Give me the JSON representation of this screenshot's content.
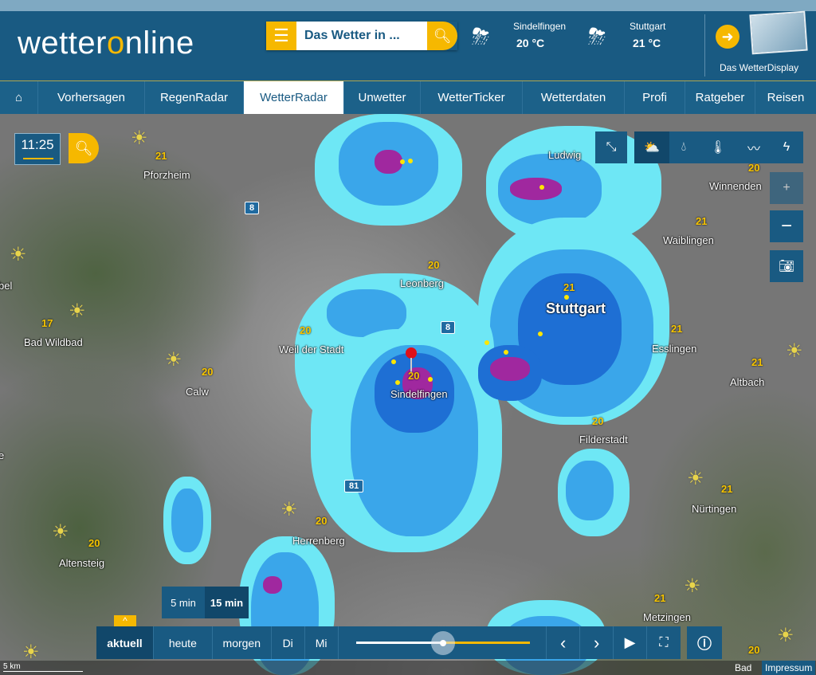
{
  "header": {
    "logo": "wetteronline",
    "search_placeholder": "Das Wetter in ...",
    "weather": [
      {
        "city": "Sindelfingen",
        "temp": "20 °C",
        "icon": "thunderstorm-icon"
      },
      {
        "city": "Stuttgart",
        "temp": "21 °C",
        "icon": "sun-thunderstorm-icon"
      }
    ],
    "wetterdisplay": "Das WetterDisplay"
  },
  "nav": {
    "items": [
      "Vorhersagen",
      "RegenRadar",
      "WetterRadar",
      "Unwetter",
      "WetterTicker",
      "Wetterdaten",
      "Profi",
      "Ratgeber",
      "Reisen"
    ],
    "active": "WetterRadar"
  },
  "map": {
    "time": "11:25",
    "cities": [
      {
        "name": "Pforzheim",
        "temp": "21"
      },
      {
        "name": "Leonberg",
        "temp": "20"
      },
      {
        "name": "Stuttgart",
        "temp": "21"
      },
      {
        "name": "Ludwig",
        "temp": ""
      },
      {
        "name": "Winnenden",
        "temp": "20"
      },
      {
        "name": "Waiblingen",
        "temp": "21"
      },
      {
        "name": "Esslingen",
        "temp": "21"
      },
      {
        "name": "Altbach",
        "temp": "21"
      },
      {
        "name": "Weil der Stadt",
        "temp": "20"
      },
      {
        "name": "Sindelfingen",
        "temp": "20"
      },
      {
        "name": "Filderstadt",
        "temp": "20"
      },
      {
        "name": "Bad Wildbad",
        "temp": "17"
      },
      {
        "name": "Calw",
        "temp": "20"
      },
      {
        "name": "Nürtingen",
        "temp": "21"
      },
      {
        "name": "Herrenberg",
        "temp": "20"
      },
      {
        "name": "Altensteig",
        "temp": "20"
      },
      {
        "name": "Metzingen",
        "temp": "21"
      },
      {
        "name": "bel",
        "temp": ""
      },
      {
        "name": "e",
        "temp": ""
      },
      {
        "name": "",
        "temp": "20"
      }
    ],
    "highways": [
      "8",
      "8",
      "81"
    ],
    "layers": [
      "cloud-sun-icon",
      "raindrop-icon",
      "thermometer-icon",
      "wind-icon",
      "lightning-icon"
    ],
    "interval": [
      "5 min",
      "15 min"
    ],
    "scale": "5 km",
    "footer": [
      "Bad",
      "Impressum"
    ]
  },
  "playbar": {
    "days": [
      "aktuell",
      "heute",
      "morgen",
      "Di",
      "Mi"
    ],
    "active": "aktuell",
    "progress": 0.5
  },
  "colors": {
    "brand": "#195a82",
    "accent": "#f6b800"
  }
}
